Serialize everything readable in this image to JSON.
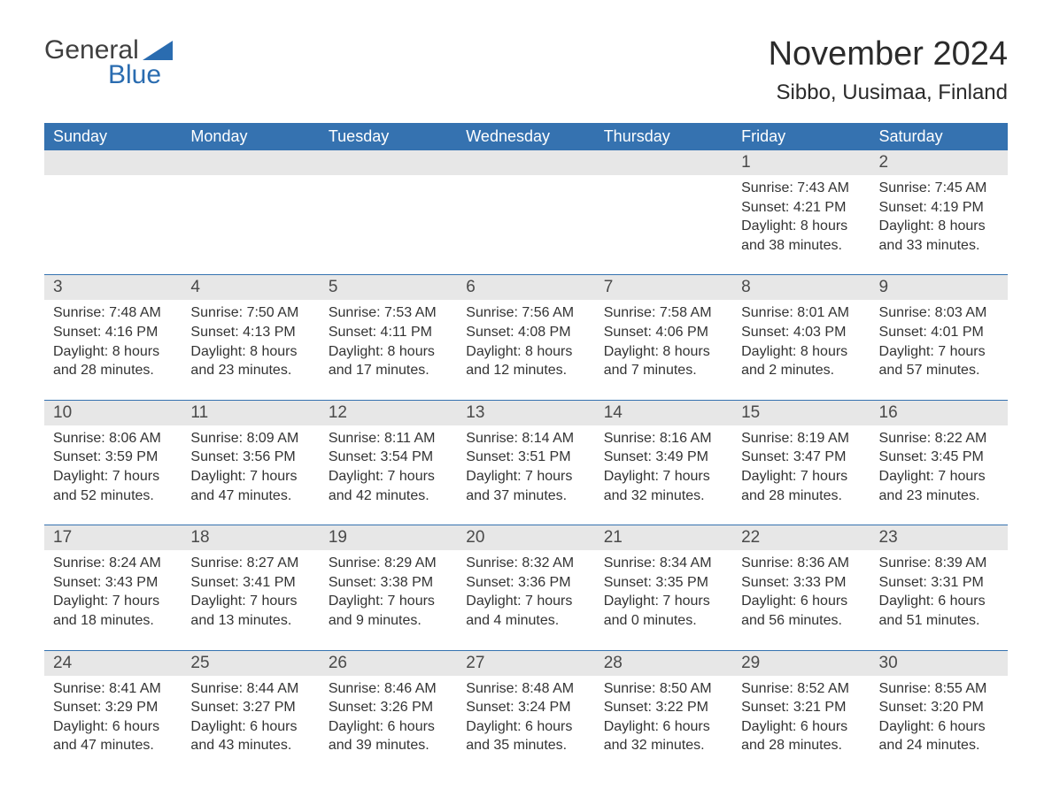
{
  "logo": {
    "text_general": "General",
    "text_blue": "Blue",
    "triangle_color": "#2a6cb0"
  },
  "header": {
    "month_year": "November 2024",
    "location": "Sibbo, Uusimaa, Finland"
  },
  "colors": {
    "header_bg": "#3572b0",
    "header_text": "#ffffff",
    "daynum_bg": "#e7e7e7",
    "body_text": "#333333",
    "border": "#3572b0"
  },
  "day_labels": [
    "Sunday",
    "Monday",
    "Tuesday",
    "Wednesday",
    "Thursday",
    "Friday",
    "Saturday"
  ],
  "label_prefixes": {
    "sunrise": "Sunrise: ",
    "sunset": "Sunset: ",
    "daylight": "Daylight: "
  },
  "weeks": [
    [
      null,
      null,
      null,
      null,
      null,
      {
        "n": "1",
        "sunrise": "7:43 AM",
        "sunset": "4:21 PM",
        "daylight_l1": "8 hours",
        "daylight_l2": "and 38 minutes."
      },
      {
        "n": "2",
        "sunrise": "7:45 AM",
        "sunset": "4:19 PM",
        "daylight_l1": "8 hours",
        "daylight_l2": "and 33 minutes."
      }
    ],
    [
      {
        "n": "3",
        "sunrise": "7:48 AM",
        "sunset": "4:16 PM",
        "daylight_l1": "8 hours",
        "daylight_l2": "and 28 minutes."
      },
      {
        "n": "4",
        "sunrise": "7:50 AM",
        "sunset": "4:13 PM",
        "daylight_l1": "8 hours",
        "daylight_l2": "and 23 minutes."
      },
      {
        "n": "5",
        "sunrise": "7:53 AM",
        "sunset": "4:11 PM",
        "daylight_l1": "8 hours",
        "daylight_l2": "and 17 minutes."
      },
      {
        "n": "6",
        "sunrise": "7:56 AM",
        "sunset": "4:08 PM",
        "daylight_l1": "8 hours",
        "daylight_l2": "and 12 minutes."
      },
      {
        "n": "7",
        "sunrise": "7:58 AM",
        "sunset": "4:06 PM",
        "daylight_l1": "8 hours",
        "daylight_l2": "and 7 minutes."
      },
      {
        "n": "8",
        "sunrise": "8:01 AM",
        "sunset": "4:03 PM",
        "daylight_l1": "8 hours",
        "daylight_l2": "and 2 minutes."
      },
      {
        "n": "9",
        "sunrise": "8:03 AM",
        "sunset": "4:01 PM",
        "daylight_l1": "7 hours",
        "daylight_l2": "and 57 minutes."
      }
    ],
    [
      {
        "n": "10",
        "sunrise": "8:06 AM",
        "sunset": "3:59 PM",
        "daylight_l1": "7 hours",
        "daylight_l2": "and 52 minutes."
      },
      {
        "n": "11",
        "sunrise": "8:09 AM",
        "sunset": "3:56 PM",
        "daylight_l1": "7 hours",
        "daylight_l2": "and 47 minutes."
      },
      {
        "n": "12",
        "sunrise": "8:11 AM",
        "sunset": "3:54 PM",
        "daylight_l1": "7 hours",
        "daylight_l2": "and 42 minutes."
      },
      {
        "n": "13",
        "sunrise": "8:14 AM",
        "sunset": "3:51 PM",
        "daylight_l1": "7 hours",
        "daylight_l2": "and 37 minutes."
      },
      {
        "n": "14",
        "sunrise": "8:16 AM",
        "sunset": "3:49 PM",
        "daylight_l1": "7 hours",
        "daylight_l2": "and 32 minutes."
      },
      {
        "n": "15",
        "sunrise": "8:19 AM",
        "sunset": "3:47 PM",
        "daylight_l1": "7 hours",
        "daylight_l2": "and 28 minutes."
      },
      {
        "n": "16",
        "sunrise": "8:22 AM",
        "sunset": "3:45 PM",
        "daylight_l1": "7 hours",
        "daylight_l2": "and 23 minutes."
      }
    ],
    [
      {
        "n": "17",
        "sunrise": "8:24 AM",
        "sunset": "3:43 PM",
        "daylight_l1": "7 hours",
        "daylight_l2": "and 18 minutes."
      },
      {
        "n": "18",
        "sunrise": "8:27 AM",
        "sunset": "3:41 PM",
        "daylight_l1": "7 hours",
        "daylight_l2": "and 13 minutes."
      },
      {
        "n": "19",
        "sunrise": "8:29 AM",
        "sunset": "3:38 PM",
        "daylight_l1": "7 hours",
        "daylight_l2": "and 9 minutes."
      },
      {
        "n": "20",
        "sunrise": "8:32 AM",
        "sunset": "3:36 PM",
        "daylight_l1": "7 hours",
        "daylight_l2": "and 4 minutes."
      },
      {
        "n": "21",
        "sunrise": "8:34 AM",
        "sunset": "3:35 PM",
        "daylight_l1": "7 hours",
        "daylight_l2": "and 0 minutes."
      },
      {
        "n": "22",
        "sunrise": "8:36 AM",
        "sunset": "3:33 PM",
        "daylight_l1": "6 hours",
        "daylight_l2": "and 56 minutes."
      },
      {
        "n": "23",
        "sunrise": "8:39 AM",
        "sunset": "3:31 PM",
        "daylight_l1": "6 hours",
        "daylight_l2": "and 51 minutes."
      }
    ],
    [
      {
        "n": "24",
        "sunrise": "8:41 AM",
        "sunset": "3:29 PM",
        "daylight_l1": "6 hours",
        "daylight_l2": "and 47 minutes."
      },
      {
        "n": "25",
        "sunrise": "8:44 AM",
        "sunset": "3:27 PM",
        "daylight_l1": "6 hours",
        "daylight_l2": "and 43 minutes."
      },
      {
        "n": "26",
        "sunrise": "8:46 AM",
        "sunset": "3:26 PM",
        "daylight_l1": "6 hours",
        "daylight_l2": "and 39 minutes."
      },
      {
        "n": "27",
        "sunrise": "8:48 AM",
        "sunset": "3:24 PM",
        "daylight_l1": "6 hours",
        "daylight_l2": "and 35 minutes."
      },
      {
        "n": "28",
        "sunrise": "8:50 AM",
        "sunset": "3:22 PM",
        "daylight_l1": "6 hours",
        "daylight_l2": "and 32 minutes."
      },
      {
        "n": "29",
        "sunrise": "8:52 AM",
        "sunset": "3:21 PM",
        "daylight_l1": "6 hours",
        "daylight_l2": "and 28 minutes."
      },
      {
        "n": "30",
        "sunrise": "8:55 AM",
        "sunset": "3:20 PM",
        "daylight_l1": "6 hours",
        "daylight_l2": "and 24 minutes."
      }
    ]
  ]
}
